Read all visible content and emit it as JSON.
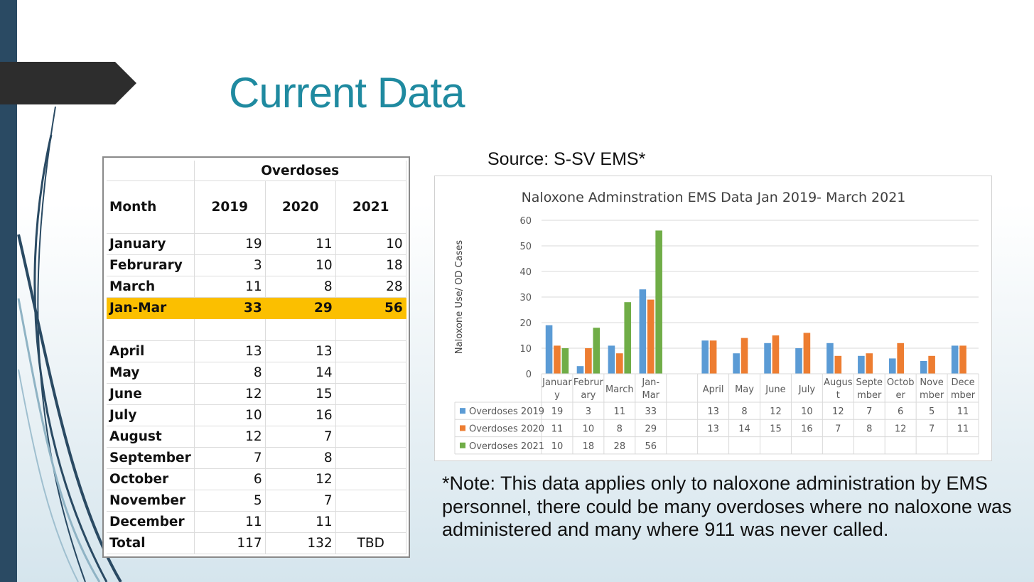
{
  "slide": {
    "title": "Current Data",
    "source": "Source: S-SV EMS*",
    "note": "*Note: This data applies only to naloxone administration by EMS personnel, there could be many overdoses where no naloxone was administered and many where 911 was never called."
  },
  "table": {
    "group_header": "Overdoses",
    "headers": [
      "Month",
      "2019",
      "2020",
      "2021"
    ],
    "rows": [
      {
        "month": "January",
        "y2019": "19",
        "y2020": "11",
        "y2021": "10"
      },
      {
        "month": "Februrary",
        "y2019": "3",
        "y2020": "10",
        "y2021": "18"
      },
      {
        "month": "March",
        "y2019": "11",
        "y2020": "8",
        "y2021": "28"
      },
      {
        "month": "Jan-Mar",
        "y2019": "33",
        "y2020": "29",
        "y2021": "56"
      },
      {
        "month": "April",
        "y2019": "13",
        "y2020": "13",
        "y2021": ""
      },
      {
        "month": "May",
        "y2019": "8",
        "y2020": "14",
        "y2021": ""
      },
      {
        "month": "June",
        "y2019": "12",
        "y2020": "15",
        "y2021": ""
      },
      {
        "month": "July",
        "y2019": "10",
        "y2020": "16",
        "y2021": ""
      },
      {
        "month": "August",
        "y2019": "12",
        "y2020": "7",
        "y2021": ""
      },
      {
        "month": "September",
        "y2019": "7",
        "y2020": "8",
        "y2021": ""
      },
      {
        "month": "October",
        "y2019": "6",
        "y2020": "12",
        "y2021": ""
      },
      {
        "month": "November",
        "y2019": "5",
        "y2020": "7",
        "y2021": ""
      },
      {
        "month": "December",
        "y2019": "11",
        "y2020": "11",
        "y2021": ""
      }
    ],
    "total": {
      "month": "Total",
      "y2019": "117",
      "y2020": "132",
      "y2021": "TBD"
    },
    "highlight_color": "#FBBF00"
  },
  "chart_data": {
    "type": "bar",
    "title": "Naloxone Adminstration EMS Data Jan 2019- March 2021",
    "ylabel": "Naloxone Use/ OD Cases",
    "xlabel": "",
    "ylim": [
      0,
      60
    ],
    "yticks": [
      0,
      10,
      20,
      30,
      40,
      50,
      60
    ],
    "grid": true,
    "categories": [
      [
        "Januar",
        "y"
      ],
      [
        "Februr",
        "ary"
      ],
      [
        "March"
      ],
      [
        "Jan-",
        "Mar"
      ],
      [
        ""
      ],
      [
        "April"
      ],
      [
        "May"
      ],
      [
        "June"
      ],
      [
        "July"
      ],
      [
        "Augus",
        "t"
      ],
      [
        "Septe",
        "mber"
      ],
      [
        "Octob",
        "er"
      ],
      [
        "Nove",
        "mber"
      ],
      [
        "Dece",
        "mber"
      ]
    ],
    "series": [
      {
        "name": "Overdoses 2019",
        "color": "#5B9BD5",
        "values": [
          19,
          3,
          11,
          33,
          null,
          13,
          8,
          12,
          10,
          12,
          7,
          6,
          5,
          11
        ]
      },
      {
        "name": "Overdoses 2020",
        "color": "#ED7D31",
        "values": [
          11,
          10,
          8,
          29,
          null,
          13,
          14,
          15,
          16,
          7,
          8,
          12,
          7,
          11
        ]
      },
      {
        "name": "Overdoses 2021",
        "color": "#70AD47",
        "values": [
          10,
          18,
          28,
          56,
          null,
          null,
          null,
          null,
          null,
          null,
          null,
          null,
          null,
          null
        ]
      }
    ],
    "legend": "data-table"
  }
}
